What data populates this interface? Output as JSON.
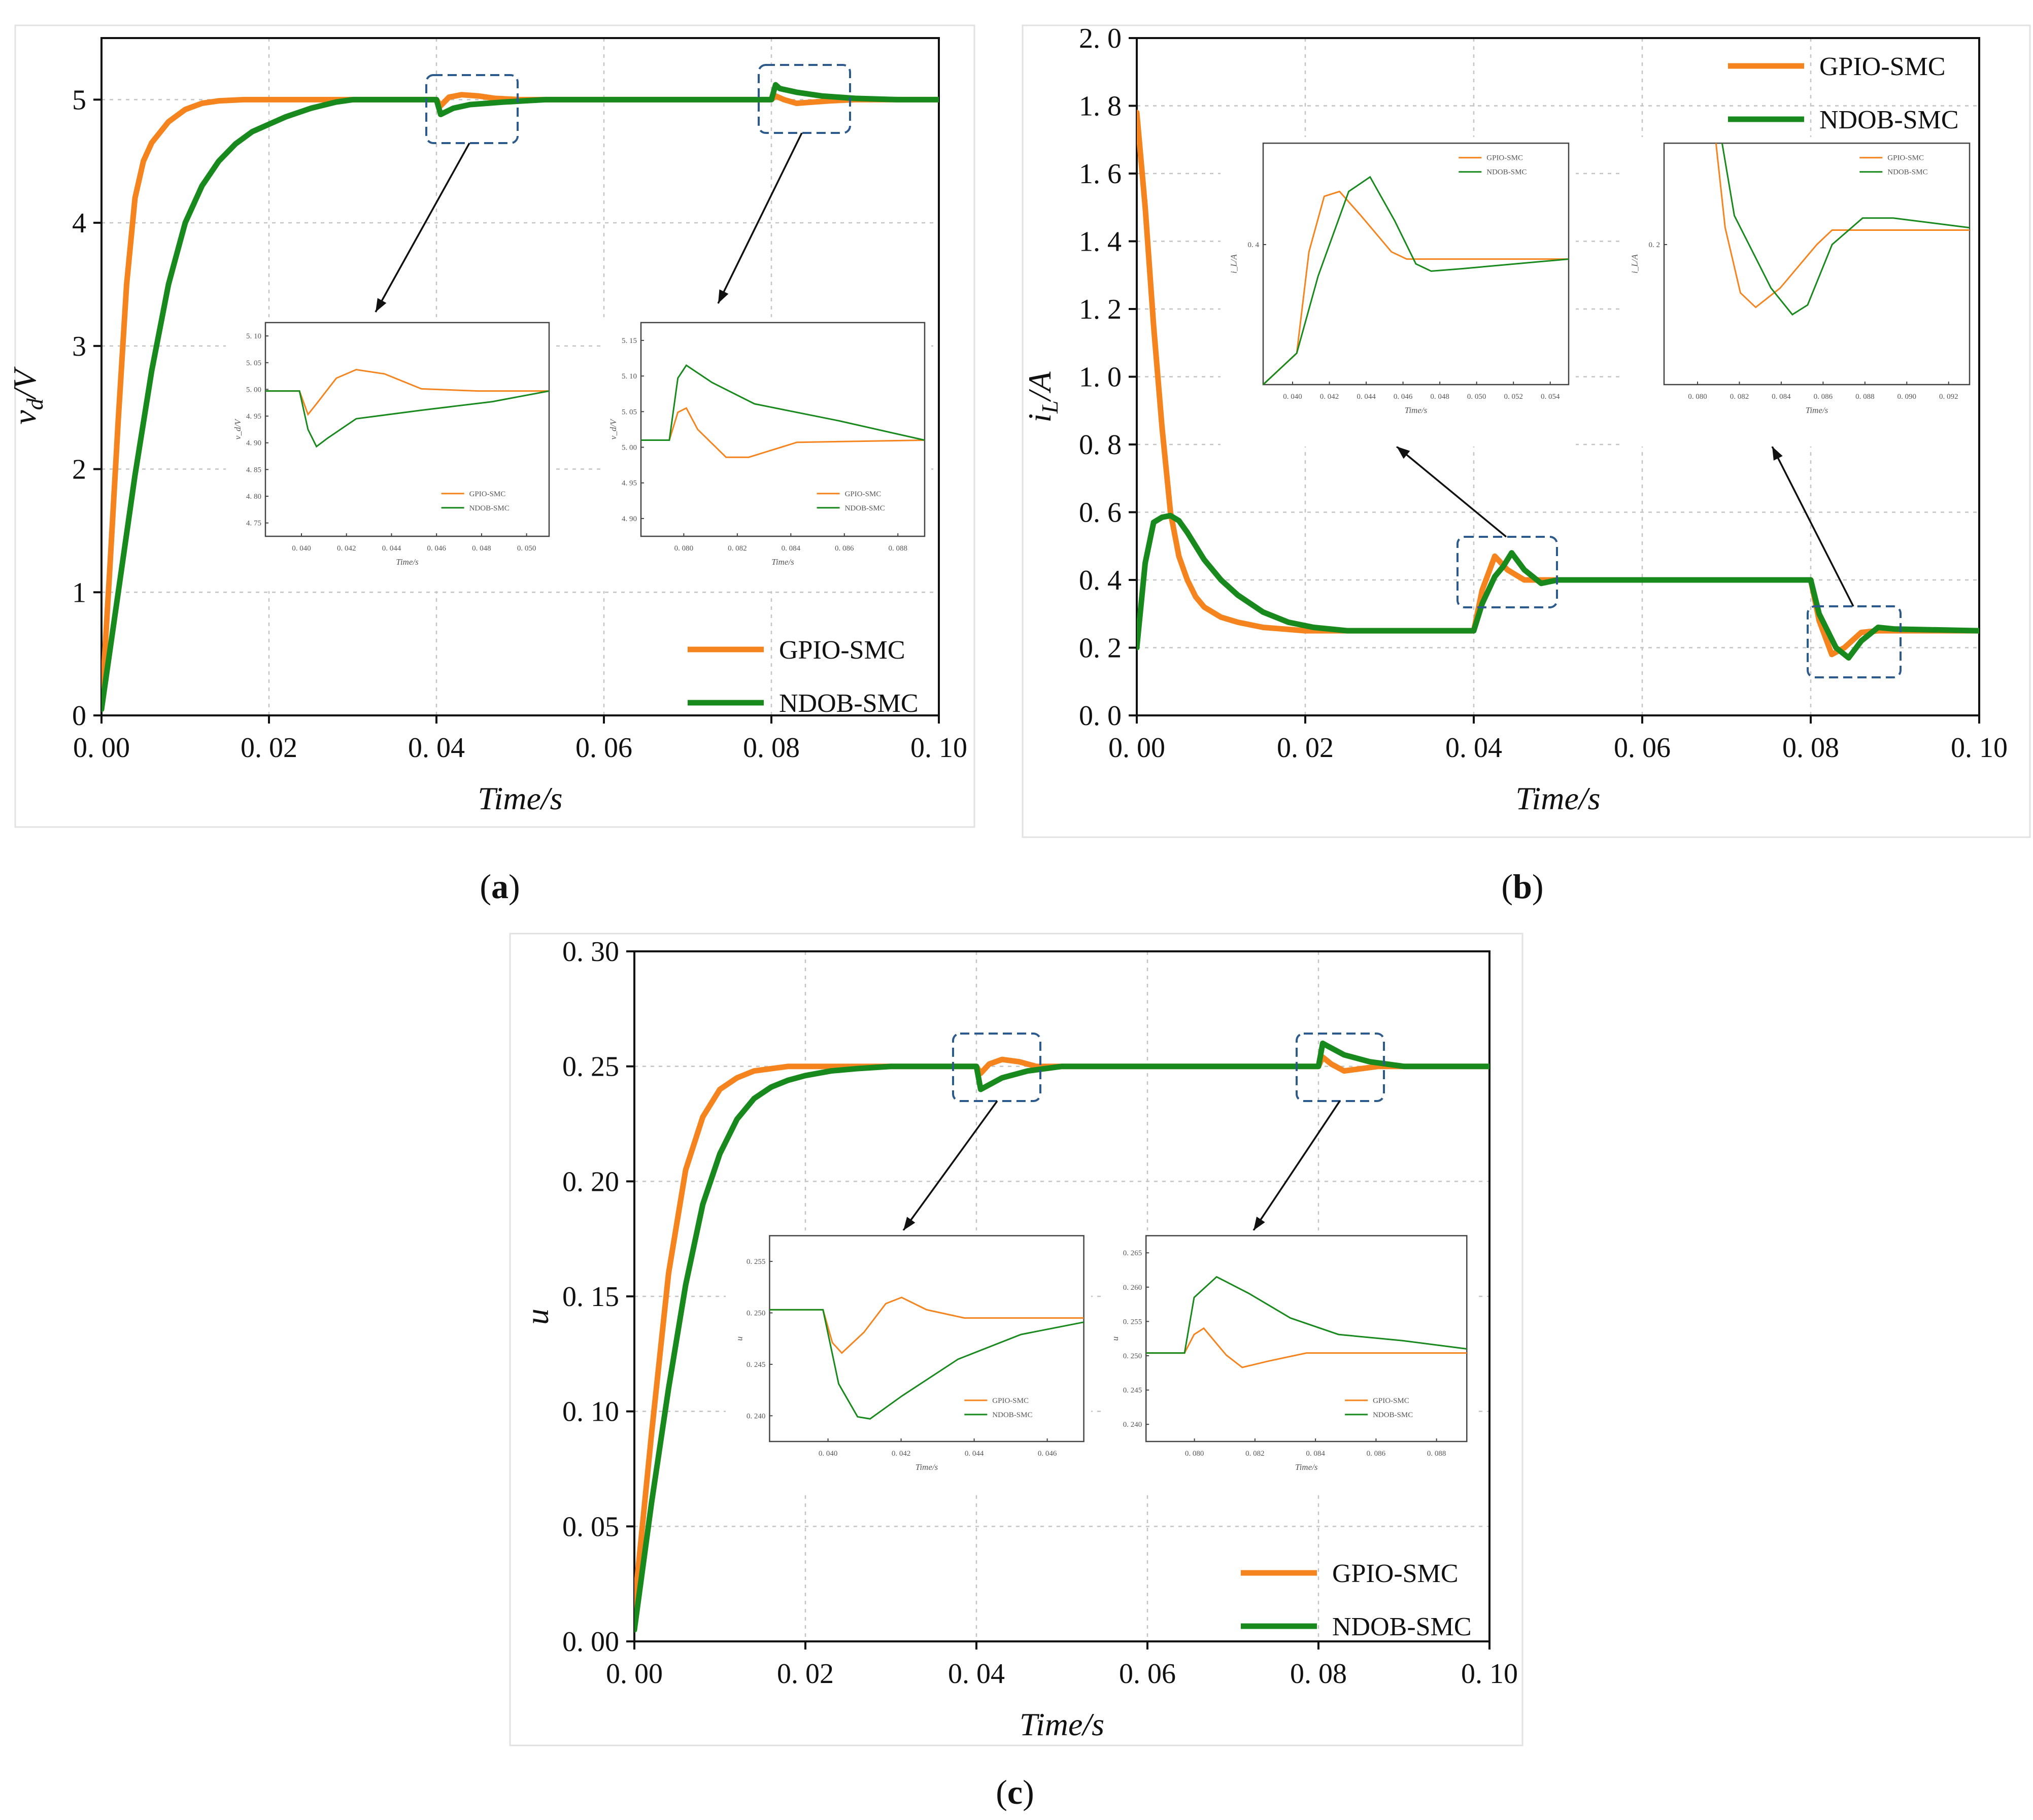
{
  "colors": {
    "gpio": "#f5841f",
    "ndob": "#18891c",
    "box": "#2d5a8c",
    "grid": "#c4c4c4"
  },
  "chart_data": [
    {
      "id": "a",
      "type": "line",
      "caption": "a",
      "xlabel": "Time/s",
      "ylabel": "v_d/V",
      "ylabel_main": "v",
      "ylabel_sub": "d",
      "ylabel_tail": "/V",
      "xlim": [
        0,
        0.1
      ],
      "ylim": [
        0,
        5.5
      ],
      "xticks": [
        "0. 00",
        "0. 02",
        "0. 04",
        "0. 06",
        "0. 08",
        "0. 10"
      ],
      "yticks": [
        "0",
        "1",
        "2",
        "3",
        "4",
        "5"
      ],
      "legend": [
        "GPIO-SMC",
        "NDOB-SMC"
      ],
      "series": [
        {
          "name": "GPIO-SMC",
          "x": [
            0,
            0.001,
            0.002,
            0.003,
            0.004,
            0.005,
            0.006,
            0.008,
            0.01,
            0.012,
            0.014,
            0.017,
            0.02,
            0.03,
            0.04,
            0.0405,
            0.0415,
            0.043,
            0.045,
            0.047,
            0.05,
            0.08,
            0.0805,
            0.0815,
            0.083,
            0.085,
            0.087,
            0.09,
            0.1
          ],
          "y": [
            0.05,
            1.2,
            2.4,
            3.5,
            4.2,
            4.5,
            4.65,
            4.82,
            4.92,
            4.97,
            4.99,
            5.0,
            5.0,
            5.0,
            5.0,
            4.95,
            5.02,
            5.04,
            5.03,
            5.01,
            5.0,
            5.0,
            5.03,
            5.0,
            4.97,
            4.98,
            4.99,
            5.0,
            5.0
          ]
        },
        {
          "name": "NDOB-SMC",
          "x": [
            0,
            0.002,
            0.004,
            0.006,
            0.008,
            0.01,
            0.012,
            0.014,
            0.016,
            0.018,
            0.02,
            0.022,
            0.025,
            0.028,
            0.03,
            0.04,
            0.0405,
            0.042,
            0.044,
            0.048,
            0.053,
            0.08,
            0.0805,
            0.081,
            0.083,
            0.086,
            0.09,
            0.095,
            0.1
          ],
          "y": [
            0.05,
            1.0,
            1.95,
            2.8,
            3.5,
            4.0,
            4.3,
            4.5,
            4.64,
            4.74,
            4.8,
            4.86,
            4.93,
            4.98,
            5.0,
            5.0,
            4.88,
            4.93,
            4.96,
            4.98,
            5.0,
            5.0,
            5.12,
            5.09,
            5.06,
            5.03,
            5.01,
            5.0,
            5.0
          ]
        }
      ],
      "insets": [
        {
          "xlabel": "Time/s",
          "ylabel": "v_d/V",
          "xticks": [
            "0. 040",
            "0. 042",
            "0. 044",
            "0. 046",
            "0. 048",
            "0. 050"
          ],
          "yticks": [
            "5. 10",
            "5. 05",
            "5. 00",
            "4. 95",
            "4. 90",
            "4. 85",
            "4. 80",
            "4. 75"
          ],
          "legend": [
            "GPIO-SMC",
            "NDOB-SMC"
          ]
        },
        {
          "xlabel": "Time/s",
          "ylabel": "v_d/V",
          "xticks": [
            "0. 080",
            "0. 082",
            "0. 084",
            "0. 086",
            "0. 088"
          ],
          "yticks": [
            "5. 15",
            "5. 10",
            "5. 05",
            "5. 00",
            "4. 95",
            "4. 90"
          ],
          "legend": [
            "GPIO-SMC",
            "NDOB-SMC"
          ]
        }
      ]
    },
    {
      "id": "b",
      "type": "line",
      "caption": "b",
      "xlabel": "Time/s",
      "ylabel": "i_L/A",
      "ylabel_main": "i",
      "ylabel_sub": "L",
      "ylabel_tail": "/A",
      "xlim": [
        0,
        0.1
      ],
      "ylim": [
        0,
        2.0
      ],
      "xticks": [
        "0. 00",
        "0. 02",
        "0. 04",
        "0. 06",
        "0. 08",
        "0. 10"
      ],
      "yticks": [
        "0. 0",
        "0. 2",
        "0. 4",
        "0. 6",
        "0. 8",
        "1. 0",
        "1. 2",
        "1. 4",
        "1. 6",
        "1. 8",
        "2. 0"
      ],
      "legend": [
        "GPIO-SMC",
        "NDOB-SMC"
      ],
      "series": [
        {
          "name": "GPIO-SMC",
          "x": [
            0,
            0.001,
            0.002,
            0.003,
            0.004,
            0.005,
            0.006,
            0.007,
            0.008,
            0.01,
            0.012,
            0.015,
            0.02,
            0.025,
            0.04,
            0.041,
            0.0425,
            0.044,
            0.046,
            0.048,
            0.05,
            0.06,
            0.08,
            0.081,
            0.0825,
            0.084,
            0.086,
            0.088,
            0.09,
            0.1
          ],
          "y": [
            1.78,
            1.5,
            1.15,
            0.85,
            0.6,
            0.47,
            0.4,
            0.35,
            0.32,
            0.29,
            0.275,
            0.26,
            0.25,
            0.25,
            0.25,
            0.37,
            0.47,
            0.43,
            0.4,
            0.4,
            0.4,
            0.4,
            0.4,
            0.28,
            0.18,
            0.2,
            0.245,
            0.25,
            0.25,
            0.25
          ]
        },
        {
          "name": "NDOB-SMC",
          "x": [
            0,
            0.001,
            0.002,
            0.003,
            0.004,
            0.005,
            0.006,
            0.008,
            0.01,
            0.012,
            0.015,
            0.018,
            0.021,
            0.025,
            0.04,
            0.041,
            0.0425,
            0.0435,
            0.0445,
            0.046,
            0.048,
            0.05,
            0.06,
            0.08,
            0.081,
            0.083,
            0.0845,
            0.086,
            0.088,
            0.09,
            0.1
          ],
          "y": [
            0.2,
            0.45,
            0.57,
            0.585,
            0.59,
            0.575,
            0.54,
            0.46,
            0.4,
            0.355,
            0.305,
            0.275,
            0.26,
            0.25,
            0.25,
            0.33,
            0.41,
            0.44,
            0.48,
            0.43,
            0.39,
            0.4,
            0.4,
            0.4,
            0.3,
            0.2,
            0.17,
            0.22,
            0.26,
            0.255,
            0.25
          ]
        }
      ],
      "insets": [
        {
          "xlabel": "Time/s",
          "ylabel": "i_L/A",
          "xticks": [
            "0. 040",
            "0. 042",
            "0. 044",
            "0. 046",
            "0. 048",
            "0. 050",
            "0. 052",
            "0. 054"
          ],
          "yticks": [
            "0. 4"
          ],
          "legend": [
            "GPIO-SMC",
            "NDOB-SMC"
          ]
        },
        {
          "xlabel": "Time/s",
          "ylabel": "i_L/A",
          "xticks": [
            "0. 080",
            "0. 082",
            "0. 084",
            "0. 086",
            "0. 088",
            "0. 090",
            "0. 092"
          ],
          "yticks": [
            "0. 2"
          ],
          "legend": [
            "GPIO-SMC",
            "NDOB-SMC"
          ]
        }
      ]
    },
    {
      "id": "c",
      "type": "line",
      "caption": "c",
      "xlabel": "Time/s",
      "ylabel": "u",
      "ylabel_main": "u",
      "ylabel_sub": "",
      "ylabel_tail": "",
      "xlim": [
        0,
        0.1
      ],
      "ylim": [
        0,
        0.3
      ],
      "xticks": [
        "0. 00",
        "0. 02",
        "0. 04",
        "0. 06",
        "0. 08",
        "0. 10"
      ],
      "yticks": [
        "0. 00",
        "0. 05",
        "0. 10",
        "0. 15",
        "0. 20",
        "0. 25",
        "0. 30"
      ],
      "legend": [
        "GPIO-SMC",
        "NDOB-SMC"
      ],
      "series": [
        {
          "name": "GPIO-SMC",
          "x": [
            0,
            0.002,
            0.004,
            0.006,
            0.008,
            0.01,
            0.012,
            0.014,
            0.016,
            0.018,
            0.02,
            0.022,
            0.04,
            0.0405,
            0.0415,
            0.043,
            0.045,
            0.047,
            0.05,
            0.08,
            0.0805,
            0.0815,
            0.083,
            0.085,
            0.087,
            0.09,
            0.1
          ],
          "y": [
            0.015,
            0.09,
            0.16,
            0.205,
            0.228,
            0.24,
            0.245,
            0.248,
            0.249,
            0.25,
            0.25,
            0.25,
            0.25,
            0.247,
            0.251,
            0.253,
            0.252,
            0.25,
            0.25,
            0.25,
            0.254,
            0.251,
            0.248,
            0.249,
            0.25,
            0.25,
            0.25
          ]
        },
        {
          "name": "NDOB-SMC",
          "x": [
            0,
            0.002,
            0.004,
            0.006,
            0.008,
            0.01,
            0.012,
            0.014,
            0.016,
            0.018,
            0.02,
            0.023,
            0.026,
            0.03,
            0.04,
            0.0405,
            0.041,
            0.043,
            0.046,
            0.05,
            0.08,
            0.0805,
            0.081,
            0.083,
            0.086,
            0.09,
            0.1
          ],
          "y": [
            0.005,
            0.06,
            0.11,
            0.155,
            0.19,
            0.212,
            0.227,
            0.236,
            0.241,
            0.244,
            0.246,
            0.248,
            0.249,
            0.25,
            0.25,
            0.24,
            0.241,
            0.245,
            0.248,
            0.25,
            0.25,
            0.26,
            0.259,
            0.255,
            0.252,
            0.25,
            0.25
          ]
        }
      ],
      "insets": [
        {
          "xlabel": "Time/s",
          "ylabel": "u",
          "xticks": [
            "0. 040",
            "0. 042",
            "0. 044",
            "0. 046"
          ],
          "yticks": [
            "0. 255",
            "0. 250",
            "0. 245",
            "0. 240"
          ],
          "legend": [
            "GPIO-SMC",
            "NDOB-SMC"
          ]
        },
        {
          "xlabel": "Time/s",
          "ylabel": "u",
          "xticks": [
            "0. 080",
            "0. 082",
            "0. 084",
            "0. 086",
            "0. 088"
          ],
          "yticks": [
            "0. 265",
            "0. 260",
            "0. 255",
            "0. 250",
            "0. 245",
            "0. 240"
          ],
          "legend": [
            "GPIO-SMC",
            "NDOB-SMC"
          ]
        }
      ]
    }
  ]
}
